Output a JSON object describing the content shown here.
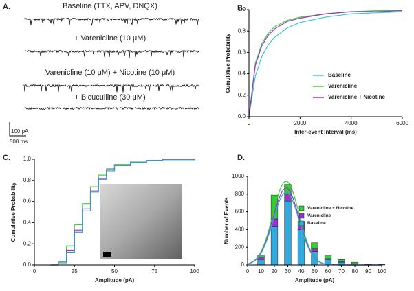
{
  "traces": {
    "panel_label": "A.",
    "labels": [
      "Baseline (TTX, APV, DNQX)",
      "+ Varenicline (10 μM)",
      "Varenicline (10 μM) + Nicotine (10 μM)",
      "+ Bicuculline (30 μM)"
    ],
    "scale_y": "100 pA",
    "scale_x": "500 ms"
  },
  "chart_data": [
    {
      "type": "line",
      "panel_label": "B.",
      "x_label": "Inter-event Interval (ms)",
      "y_label": "Cumulative Probability",
      "x": [
        0,
        250,
        500,
        750,
        1000,
        1500,
        2000,
        3000,
        4000,
        5000,
        6000
      ],
      "series": [
        {
          "name": "Baseline",
          "color": "#33cccc",
          "values": [
            0,
            0.38,
            0.56,
            0.67,
            0.74,
            0.83,
            0.88,
            0.93,
            0.96,
            0.97,
            0.98
          ]
        },
        {
          "name": "Varenicline",
          "color": "#44cc44",
          "values": [
            0,
            0.5,
            0.68,
            0.78,
            0.84,
            0.9,
            0.93,
            0.96,
            0.98,
            0.99,
            0.99
          ]
        },
        {
          "name": "Varenicline + Nicotine",
          "color": "#9933cc",
          "values": [
            0,
            0.48,
            0.66,
            0.76,
            0.82,
            0.89,
            0.92,
            0.96,
            0.98,
            0.98,
            0.99
          ]
        }
      ],
      "xlim": [
        0,
        6000
      ],
      "xticks": [
        0,
        2000,
        4000,
        6000
      ],
      "ylim": [
        0,
        1
      ],
      "yticks": [
        {
          "value": 0,
          "label": "0.0"
        },
        0.2,
        0.4,
        0.6,
        0.8,
        {
          "value": 1,
          "label": "1.0"
        }
      ],
      "legend": "lower right"
    },
    {
      "type": "step",
      "panel_label": "C.",
      "x_label": "Amplitude (pA)",
      "y_label": "Cumulative Probability",
      "x": [
        10,
        15,
        20,
        25,
        30,
        35,
        40,
        45,
        50,
        60,
        70,
        80,
        100
      ],
      "series": [
        {
          "color": "#44cc44",
          "values": [
            0,
            0.03,
            0.18,
            0.38,
            0.58,
            0.74,
            0.85,
            0.91,
            0.95,
            0.98,
            0.99,
            1,
            1
          ]
        },
        {
          "color": "#9933cc",
          "values": [
            0,
            0.02,
            0.14,
            0.33,
            0.53,
            0.7,
            0.82,
            0.9,
            0.94,
            0.97,
            0.99,
            1,
            1
          ]
        },
        {
          "color": "#3399cc",
          "values": [
            0,
            0.02,
            0.12,
            0.31,
            0.51,
            0.69,
            0.81,
            0.89,
            0.94,
            0.97,
            0.99,
            0.995,
            1
          ]
        }
      ],
      "xlim": [
        0,
        100
      ],
      "xticks": [
        0,
        25,
        50,
        75,
        100
      ],
      "ylim": [
        0,
        1
      ],
      "yticks": [
        {
          "value": 0,
          "label": "0.0"
        },
        0.2,
        0.4,
        0.6,
        0.8,
        {
          "value": 1,
          "label": "1.0"
        }
      ]
    },
    {
      "type": "bar",
      "stacked": true,
      "panel_label": "D.",
      "x_label": "Amplitude (pA)",
      "y_label": "Number of Events",
      "x": [
        10,
        20,
        30,
        40,
        50,
        60,
        70,
        80,
        90,
        100
      ],
      "series": [
        {
          "name": "Baseline",
          "color": "#33aadd",
          "values": [
            60,
            430,
            720,
            400,
            150,
            60,
            30,
            10,
            5,
            2
          ]
        },
        {
          "name": "Varenicline",
          "color": "#9933cc",
          "values": [
            30,
            90,
            80,
            40,
            30,
            10,
            10,
            5,
            2,
            1
          ]
        },
        {
          "name": "Varenicline + Nicotine",
          "color": "#33cc33",
          "values": [
            20,
            270,
            110,
            50,
            70,
            40,
            20,
            15,
            3,
            2
          ]
        }
      ],
      "xlim": [
        0,
        100
      ],
      "xticks": [
        0,
        10,
        20,
        30,
        40,
        50,
        60,
        70,
        80,
        90,
        100
      ],
      "ylim": [
        0,
        1000
      ],
      "yticks": [
        0,
        200,
        400,
        600,
        800,
        1000
      ],
      "legend": "center right"
    }
  ]
}
